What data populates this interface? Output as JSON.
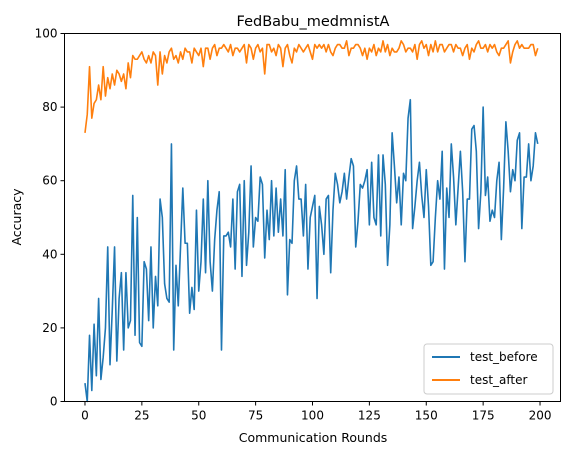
{
  "chart_data": {
    "type": "line",
    "title": "FedBabu_medmnistA",
    "xlabel": "Communication Rounds",
    "ylabel": "Accuracy",
    "xlim": [
      -9,
      209
    ],
    "ylim": [
      0,
      100
    ],
    "xticks": [
      0,
      25,
      50,
      75,
      100,
      125,
      150,
      175,
      200
    ],
    "yticks": [
      0,
      20,
      40,
      60,
      80,
      100
    ],
    "grid": false,
    "legend_position": "lower-right",
    "x": [
      0,
      1,
      2,
      3,
      4,
      5,
      6,
      7,
      8,
      9,
      10,
      11,
      12,
      13,
      14,
      15,
      16,
      17,
      18,
      19,
      20,
      21,
      22,
      23,
      24,
      25,
      26,
      27,
      28,
      29,
      30,
      31,
      32,
      33,
      34,
      35,
      36,
      37,
      38,
      39,
      40,
      41,
      42,
      43,
      44,
      45,
      46,
      47,
      48,
      49,
      50,
      51,
      52,
      53,
      54,
      55,
      56,
      57,
      58,
      59,
      60,
      61,
      62,
      63,
      64,
      65,
      66,
      67,
      68,
      69,
      70,
      71,
      72,
      73,
      74,
      75,
      76,
      77,
      78,
      79,
      80,
      81,
      82,
      83,
      84,
      85,
      86,
      87,
      88,
      89,
      90,
      91,
      92,
      93,
      94,
      95,
      96,
      97,
      98,
      99,
      100,
      101,
      102,
      103,
      104,
      105,
      106,
      107,
      108,
      109,
      110,
      111,
      112,
      113,
      114,
      115,
      116,
      117,
      118,
      119,
      120,
      121,
      122,
      123,
      124,
      125,
      126,
      127,
      128,
      129,
      130,
      131,
      132,
      133,
      134,
      135,
      136,
      137,
      138,
      139,
      140,
      141,
      142,
      143,
      144,
      145,
      146,
      147,
      148,
      149,
      150,
      151,
      152,
      153,
      154,
      155,
      156,
      157,
      158,
      159,
      160,
      161,
      162,
      163,
      164,
      165,
      166,
      167,
      168,
      169,
      170,
      171,
      172,
      173,
      174,
      175,
      176,
      177,
      178,
      179,
      180,
      181,
      182,
      183,
      184,
      185,
      186,
      187,
      188,
      189,
      190,
      191,
      192,
      193,
      194,
      195,
      196,
      197,
      198,
      199
    ],
    "series": [
      {
        "name": "test_before",
        "color": "#1f77b4",
        "values": [
          5,
          0,
          18,
          3,
          21,
          7,
          28,
          6,
          12,
          20,
          42,
          10,
          25,
          42,
          11,
          28,
          35,
          14,
          35,
          20,
          22,
          56,
          18,
          50,
          16,
          15,
          38,
          36,
          22,
          42,
          20,
          34,
          26,
          55,
          50,
          32,
          28,
          27,
          70,
          14,
          37,
          26,
          42,
          58,
          43,
          43,
          24,
          31,
          25,
          52,
          30,
          38,
          55,
          35,
          60,
          38,
          30,
          44,
          52,
          57,
          14,
          45,
          45,
          46,
          42,
          55,
          36,
          57,
          59,
          34,
          60,
          37,
          46,
          64,
          42,
          50,
          49,
          61,
          59,
          39,
          52,
          44,
          60,
          45,
          58,
          46,
          55,
          45,
          63,
          29,
          44,
          43,
          60,
          64,
          55,
          55,
          45,
          59,
          36,
          50,
          53,
          56,
          28,
          53,
          48,
          40,
          55,
          56,
          35,
          52,
          62,
          59,
          54,
          57,
          62,
          55,
          61,
          66,
          64,
          42,
          49,
          59,
          58,
          60,
          63,
          48,
          65,
          50,
          48,
          67,
          45,
          67,
          59,
          37,
          48,
          73,
          64,
          54,
          61,
          48,
          62,
          60,
          77,
          82,
          47,
          53,
          60,
          65,
          56,
          50,
          63,
          53,
          37,
          38,
          50,
          60,
          55,
          68,
          36,
          58,
          50,
          70,
          61,
          48,
          58,
          68,
          57,
          38,
          55,
          55,
          74,
          75,
          68,
          47,
          57,
          80,
          56,
          61,
          49,
          52,
          50,
          60,
          65,
          44,
          58,
          76,
          68,
          57,
          63,
          60,
          71,
          73,
          47,
          61,
          61,
          70,
          60,
          64,
          73,
          70
        ]
      },
      {
        "name": "test_after",
        "color": "#ff7f0e",
        "values": [
          73,
          78,
          91,
          77,
          81,
          82,
          86,
          82,
          91,
          83,
          88,
          85,
          89,
          86,
          90,
          89,
          87,
          89,
          85,
          92,
          88,
          94,
          93,
          93,
          94,
          95,
          93,
          92,
          94,
          92,
          95,
          94,
          86,
          95,
          89,
          94,
          92,
          95,
          96,
          93,
          94,
          92,
          95,
          93,
          96,
          95,
          95,
          92,
          96,
          95,
          94,
          96,
          91,
          96,
          96,
          93,
          96,
          97,
          94,
          96,
          96,
          97,
          96,
          95,
          97,
          94,
          96,
          96,
          95,
          96,
          97,
          92,
          97,
          96,
          93,
          96,
          97,
          95,
          96,
          89,
          97,
          97,
          95,
          96,
          94,
          97,
          96,
          91,
          96,
          97,
          94,
          92,
          96,
          95,
          97,
          96,
          95,
          96,
          97,
          95,
          93,
          97,
          96,
          97,
          96,
          97,
          95,
          97,
          95,
          94,
          96,
          97,
          97,
          96,
          96,
          98,
          94,
          96,
          96,
          97,
          97,
          96,
          94,
          96,
          93,
          96,
          95,
          97,
          94,
          96,
          95,
          98,
          95,
          97,
          94,
          96,
          95,
          95,
          96,
          98,
          97,
          95,
          96,
          96,
          95,
          97,
          93,
          97,
          98,
          96,
          97,
          94,
          97,
          95,
          98,
          95,
          97,
          97,
          95,
          96,
          97,
          97,
          95,
          97,
          96,
          96,
          94,
          96,
          97,
          93,
          96,
          95,
          97,
          98,
          96,
          96,
          97,
          95,
          97,
          96,
          97,
          95,
          94,
          96,
          96,
          97,
          98,
          92,
          95,
          97,
          98,
          96,
          97,
          96,
          96,
          96,
          97,
          97,
          94,
          96
        ]
      }
    ]
  }
}
